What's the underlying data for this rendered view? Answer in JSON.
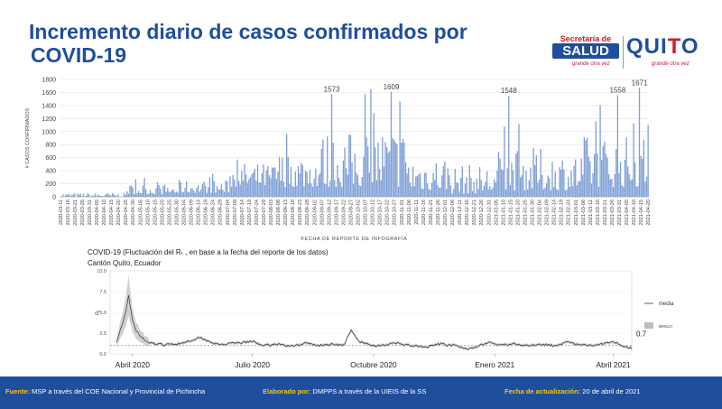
{
  "header": {
    "title_line1": "Incremento diario de casos confirmados por",
    "title_line2": "COVID-19"
  },
  "logos": {
    "salud_top": "Secretaría de",
    "salud_main": "SALUD",
    "salud_tagline": "grande otra vez",
    "quito_q": "QUI",
    "quito_red": "T",
    "quito_o": "O",
    "quito_tagline": "grande otra vez"
  },
  "colors": {
    "title": "#1f4e9c",
    "bars": "#7f9fd6",
    "footer_bg": "#1f4e9c",
    "footer_label": "#f5c518",
    "band": "#bdbdbd"
  },
  "chart_data": [
    {
      "type": "bar",
      "xlabel": "FECHA DE REPORTE DE INFOGRAFÍA",
      "ylabel": "# CASOS CONFIRMADOS",
      "ylim": [
        0,
        1800
      ],
      "yticks": [
        0,
        200,
        400,
        600,
        800,
        1000,
        1200,
        1400,
        1600,
        1800
      ],
      "grid": true,
      "x_start": "2020-03-11",
      "x_end": "2021-04-20",
      "tick_labels": [
        "2020-03-11",
        "2020-03-16",
        "2020-03-21",
        "2020-03-26",
        "2020-03-31",
        "2020-04-05",
        "2020-04-10",
        "2020-04-15",
        "2020-04-20",
        "2020-04-25",
        "2020-04-30",
        "2020-05-05",
        "2020-05-10",
        "2020-05-15",
        "2020-05-20",
        "2020-05-25",
        "2020-05-30",
        "2020-06-04",
        "2020-06-09",
        "2020-06-14",
        "2020-06-19",
        "2020-06-24",
        "2020-06-29",
        "2020-07-04",
        "2020-07-09",
        "2020-07-14",
        "2020-07-19",
        "2020-07-24",
        "2020-07-29",
        "2020-08-03",
        "2020-08-08",
        "2020-08-13",
        "2020-08-18",
        "2020-08-23",
        "2020-08-28",
        "2020-09-02",
        "2020-09-07",
        "2020-09-12",
        "2020-09-17",
        "2020-09-22",
        "2020-09-27",
        "2020-10-02",
        "2020-10-07",
        "2020-10-12",
        "2020-10-17",
        "2020-10-22",
        "2020-10-27",
        "2020-11-01",
        "2020-11-06",
        "2020-11-11",
        "2020-11-16",
        "2020-11-21",
        "2020-11-26",
        "2020-12-01",
        "2020-12-06",
        "2020-12-11",
        "2020-12-16",
        "2020-12-21",
        "2020-12-26",
        "2020-12-31",
        "2021-01-05",
        "2021-01-10",
        "2021-01-15",
        "2021-01-20",
        "2021-01-25",
        "2021-01-30",
        "2021-02-04",
        "2021-02-09",
        "2021-02-14",
        "2021-02-19",
        "2021-02-24",
        "2021-03-01",
        "2021-03-06",
        "2021-03-11",
        "2021-03-16",
        "2021-03-21",
        "2021-03-26",
        "2021-03-31",
        "2021-04-05",
        "2021-04-10",
        "2021-04-15",
        "2021-04-20"
      ],
      "annotations": [
        {
          "x": "2020-09-14",
          "label": "1573",
          "value": 1573
        },
        {
          "x": "2020-10-25",
          "label": "1609",
          "value": 1609
        },
        {
          "x": "2021-01-14",
          "label": "1548",
          "value": 1548
        },
        {
          "x": "2021-03-30",
          "label": "1558",
          "value": 1558
        },
        {
          "x": "2021-04-14",
          "label": "1671",
          "value": 1671
        }
      ],
      "segments": [
        {
          "from": "2020-03-11",
          "to": "2020-04-25",
          "low": 0,
          "high": 60
        },
        {
          "from": "2020-04-26",
          "to": "2020-05-31",
          "low": 40,
          "high": 200
        },
        {
          "from": "2020-06-01",
          "to": "2020-07-05",
          "low": 60,
          "high": 260
        },
        {
          "from": "2020-07-06",
          "to": "2020-08-05",
          "low": 150,
          "high": 520
        },
        {
          "from": "2020-08-06",
          "to": "2020-09-05",
          "low": 150,
          "high": 700
        },
        {
          "from": "2020-09-06",
          "to": "2020-10-05",
          "low": 150,
          "high": 1000
        },
        {
          "from": "2020-10-06",
          "to": "2020-11-05",
          "low": 150,
          "high": 1100
        },
        {
          "from": "2020-11-06",
          "to": "2020-12-05",
          "low": 100,
          "high": 650
        },
        {
          "from": "2020-12-06",
          "to": "2021-01-05",
          "low": 50,
          "high": 500
        },
        {
          "from": "2021-01-06",
          "to": "2021-02-05",
          "low": 100,
          "high": 750
        },
        {
          "from": "2021-02-06",
          "to": "2021-03-05",
          "low": 100,
          "high": 700
        },
        {
          "from": "2021-03-06",
          "to": "2021-04-20",
          "low": 150,
          "high": 950
        }
      ]
    },
    {
      "type": "line",
      "title": "COVID-19 (Fluctuación del Rₜ , en base a la fecha del reporte de los datos)",
      "subtitle": "Cantón Quito, Ecuador",
      "ylabel": "Rₜ",
      "ylim": [
        0,
        10
      ],
      "yticks": [
        "0.0",
        "2.5",
        "5.0",
        "7.5",
        "10.0"
      ],
      "reference_line": 1.0,
      "x_start": "2020-03-15",
      "x_end": "2021-04-15",
      "xtick_labels": [
        {
          "date": "2020-04-01",
          "label": "Abril 2020"
        },
        {
          "date": "2020-07-01",
          "label": "Julio 2020"
        },
        {
          "date": "2020-10-01",
          "label": "Octubre 2020"
        },
        {
          "date": "2021-01-01",
          "label": "Enero 2021"
        },
        {
          "date": "2021-04-01",
          "label": "Abril 2021"
        }
      ],
      "last_value_label": "0.7",
      "legend": [
        {
          "name": "media",
          "symbol": "line"
        },
        {
          "name": "95%CrI",
          "symbol": "box"
        }
      ],
      "legend_placement": "right",
      "series_points": [
        [
          "2020-03-20",
          1.5
        ],
        [
          "2020-03-24",
          3.5
        ],
        [
          "2020-03-27",
          5.0
        ],
        [
          "2020-03-29",
          7.0
        ],
        [
          "2020-04-01",
          4.0
        ],
        [
          "2020-04-04",
          2.8
        ],
        [
          "2020-04-08",
          2.0
        ],
        [
          "2020-04-12",
          1.5
        ],
        [
          "2020-04-18",
          1.2
        ],
        [
          "2020-04-25",
          1.1
        ],
        [
          "2020-05-05",
          1.2
        ],
        [
          "2020-05-15",
          1.6
        ],
        [
          "2020-05-22",
          2.0
        ],
        [
          "2020-05-28",
          1.6
        ],
        [
          "2020-06-05",
          1.1
        ],
        [
          "2020-06-20",
          1.3
        ],
        [
          "2020-07-01",
          1.5
        ],
        [
          "2020-07-10",
          1.0
        ],
        [
          "2020-07-20",
          1.2
        ],
        [
          "2020-07-30",
          0.9
        ],
        [
          "2020-08-10",
          1.3
        ],
        [
          "2020-08-20",
          1.0
        ],
        [
          "2020-09-01",
          1.2
        ],
        [
          "2020-09-08",
          1.0
        ],
        [
          "2020-09-14",
          2.8
        ],
        [
          "2020-09-20",
          1.5
        ],
        [
          "2020-09-30",
          1.0
        ],
        [
          "2020-10-10",
          1.1
        ],
        [
          "2020-10-20",
          1.3
        ],
        [
          "2020-10-28",
          1.0
        ],
        [
          "2020-11-10",
          0.8
        ],
        [
          "2020-11-20",
          1.2
        ],
        [
          "2020-12-01",
          1.0
        ],
        [
          "2020-12-10",
          0.6
        ],
        [
          "2020-12-20",
          1.0
        ],
        [
          "2020-12-28",
          1.4
        ],
        [
          "2021-01-05",
          1.0
        ],
        [
          "2021-01-15",
          1.3
        ],
        [
          "2021-01-25",
          1.0
        ],
        [
          "2021-02-05",
          1.2
        ],
        [
          "2021-02-15",
          1.0
        ],
        [
          "2021-02-25",
          1.4
        ],
        [
          "2021-03-05",
          1.1
        ],
        [
          "2021-03-15",
          1.0
        ],
        [
          "2021-03-25",
          1.3
        ],
        [
          "2021-04-01",
          1.5
        ],
        [
          "2021-04-08",
          1.0
        ],
        [
          "2021-04-15",
          0.7
        ]
      ]
    }
  ],
  "footer": {
    "fuente_label": "Fuente:",
    "fuente_text": " MSP a través del COE Nacional y Provincial de Pichincha",
    "elaborado_label": "Elaborado por:",
    "elaborado_text": " DMPPS a través de la UIEIS de la SS",
    "fecha_label": "Fecha de actualización:",
    "fecha_text": " 20 de abril de 2021"
  }
}
